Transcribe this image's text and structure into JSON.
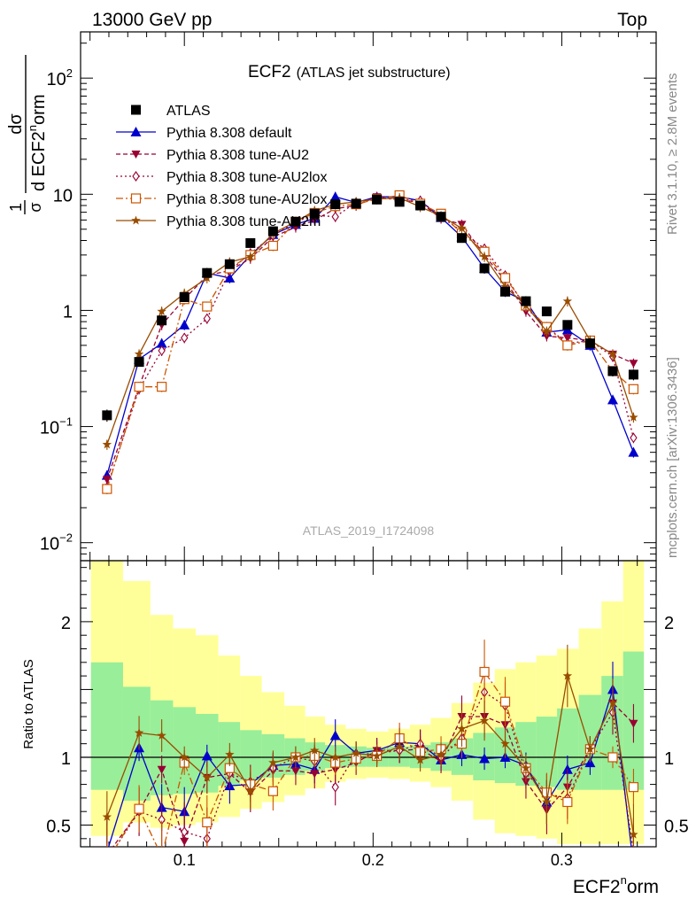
{
  "header": {
    "left": "13000 GeV pp",
    "right": "Top"
  },
  "title": {
    "main": "ECF2",
    "sub": "(ATLAS jet substructure)"
  },
  "ylabel_main": {
    "frac1_num": "1",
    "frac1_den": "σ",
    "frac2_num": "dσ",
    "frac2_den": "d ECF2",
    "sup": "n",
    "tail": "orm"
  },
  "ylabel_ratio": "Ratio to ATLAS",
  "xlabel": {
    "base": "ECF2",
    "sup": "n",
    "tail": "orm"
  },
  "side_text_top": "Rivet 3.1.10, ≥ 2.8M events",
  "side_text_bottom": "mcplots.cern.ch [arXiv:1306.3436]",
  "analysis_id": "ATLAS_2019_I1724098",
  "main_yticks": [
    {
      "value": 0.01,
      "base": "10",
      "exp": "−2"
    },
    {
      "value": 0.1,
      "base": "10",
      "exp": "−1"
    },
    {
      "value": 1,
      "base": "1",
      "exp": ""
    },
    {
      "value": 10,
      "base": "10",
      "exp": ""
    },
    {
      "value": 100,
      "base": "10",
      "exp": "2"
    }
  ],
  "ratio_yticks": [
    {
      "value": 0.5,
      "label": "0.5"
    },
    {
      "value": 1,
      "label": "1"
    },
    {
      "value": 2,
      "label": "2"
    }
  ],
  "xticks": [
    {
      "value": 0.1,
      "label": "0.1"
    },
    {
      "value": 0.2,
      "label": "0.2"
    },
    {
      "value": 0.3,
      "label": "0.3"
    }
  ],
  "chart_data": {
    "type": "scatter",
    "x": [
      0.059,
      0.076,
      0.088,
      0.1,
      0.112,
      0.124,
      0.135,
      0.147,
      0.159,
      0.169,
      0.18,
      0.191,
      0.202,
      0.214,
      0.225,
      0.236,
      0.247,
      0.259,
      0.27,
      0.281,
      0.292,
      0.303,
      0.315,
      0.327,
      0.338
    ],
    "xlim": [
      0.045,
      0.35
    ],
    "ylim_main": [
      0.007,
      250
    ],
    "ylim_ratio": [
      0.34,
      2.45
    ],
    "yscale_main": "log",
    "legend_position": "upper-left",
    "bands": {
      "green_inner": [
        [
          0.76,
          1.7
        ],
        [
          0.68,
          1.52
        ],
        [
          0.72,
          1.42
        ],
        [
          0.73,
          1.37
        ],
        [
          0.74,
          1.32
        ],
        [
          0.79,
          1.26
        ],
        [
          0.83,
          1.2
        ],
        [
          0.85,
          1.17
        ],
        [
          0.87,
          1.14
        ],
        [
          0.9,
          1.11
        ],
        [
          0.92,
          1.09
        ],
        [
          0.93,
          1.08
        ],
        [
          0.93,
          1.07
        ],
        [
          0.93,
          1.08
        ],
        [
          0.92,
          1.09
        ],
        [
          0.9,
          1.11
        ],
        [
          0.87,
          1.14
        ],
        [
          0.83,
          1.18
        ],
        [
          0.81,
          1.22
        ],
        [
          0.79,
          1.26
        ],
        [
          0.78,
          1.3
        ],
        [
          0.76,
          1.36
        ],
        [
          0.76,
          1.46
        ],
        [
          0.76,
          1.6
        ],
        [
          0.76,
          1.78
        ]
      ],
      "yellow_outer": [
        [
          0.42,
          2.45
        ],
        [
          0.52,
          2.3
        ],
        [
          0.48,
          2.05
        ],
        [
          0.5,
          1.95
        ],
        [
          0.52,
          1.9
        ],
        [
          0.56,
          1.75
        ],
        [
          0.62,
          1.6
        ],
        [
          0.67,
          1.48
        ],
        [
          0.72,
          1.38
        ],
        [
          0.77,
          1.3
        ],
        [
          0.82,
          1.24
        ],
        [
          0.84,
          1.21
        ],
        [
          0.85,
          1.19
        ],
        [
          0.84,
          1.21
        ],
        [
          0.82,
          1.24
        ],
        [
          0.78,
          1.29
        ],
        [
          0.68,
          1.4
        ],
        [
          0.54,
          1.55
        ],
        [
          0.44,
          1.65
        ],
        [
          0.42,
          1.7
        ],
        [
          0.4,
          1.75
        ],
        [
          0.36,
          1.8
        ],
        [
          0.36,
          1.95
        ],
        [
          0.36,
          2.15
        ],
        [
          0.36,
          2.45
        ]
      ]
    },
    "series": [
      {
        "name": "ATLAS",
        "color": "#000000",
        "marker": "square",
        "line": "none",
        "y": [
          0.125,
          0.36,
          0.82,
          1.3,
          2.1,
          2.5,
          3.8,
          4.8,
          5.8,
          6.8,
          8.2,
          8.3,
          9.0,
          8.6,
          8.0,
          6.4,
          4.2,
          2.3,
          1.45,
          1.2,
          0.98,
          0.75,
          0.52,
          0.3,
          0.28
        ],
        "ratio": [
          1,
          1,
          1,
          1,
          1,
          1,
          1,
          1,
          1,
          1,
          1,
          1,
          1,
          1,
          1,
          1,
          1,
          1,
          1,
          1,
          1,
          1,
          1,
          1,
          1
        ],
        "err": [
          0.015,
          0.03,
          0.06,
          0.1,
          0.15,
          0.18,
          0.25,
          0.3,
          0.35,
          0.4,
          0.45,
          0.45,
          0.45,
          0.45,
          0.45,
          0.38,
          0.28,
          0.16,
          0.11,
          0.09,
          0.08,
          0.06,
          0.05,
          0.03,
          0.03
        ]
      },
      {
        "name": "Pythia 8.308 default",
        "color": "#0000cc",
        "marker": "triangle-up",
        "line": "solid",
        "y": [
          0.038,
          0.38,
          0.52,
          0.75,
          2.1,
          1.9,
          3.0,
          4.5,
          5.5,
          6.2,
          9.5,
          8.5,
          9.5,
          9.5,
          8.8,
          6.3,
          4.3,
          2.3,
          1.45,
          1.2,
          0.65,
          0.68,
          0.5,
          0.17,
          0.06
        ],
        "ratio": [
          0.3,
          1.07,
          0.63,
          0.6,
          1.01,
          0.79,
          0.8,
          0.94,
          0.95,
          0.91,
          1.16,
          1.03,
          1.05,
          1.11,
          1.1,
          0.98,
          1.02,
          0.99,
          1.0,
          0.94,
          0.67,
          0.91,
          0.96,
          1.5,
          0.2
        ]
      },
      {
        "name": "Pythia 8.308 tune-AU2",
        "color": "#990033",
        "marker": "triangle-down",
        "line": "dashed",
        "y": [
          0.035,
          0.22,
          0.75,
          1.25,
          2.0,
          2.2,
          2.8,
          4.3,
          5.2,
          6.0,
          7.5,
          8.0,
          9.5,
          9.0,
          8.5,
          6.2,
          5.5,
          3.0,
          1.8,
          0.98,
          0.6,
          0.58,
          0.55,
          0.42,
          0.35
        ],
        "ratio": [
          0.28,
          0.6,
          0.91,
          0.38,
          0.85,
          0.88,
          0.74,
          0.9,
          0.9,
          0.88,
          0.91,
          0.96,
          1.05,
          1.05,
          1.06,
          0.97,
          1.3,
          1.3,
          1.24,
          0.82,
          0.61,
          0.78,
          1.06,
          1.4,
          1.25
        ]
      },
      {
        "name": "Pythia 8.308 tune-AU2lox",
        "color": "#990033",
        "marker": "diamond-open",
        "line": "dotted",
        "y": [
          0.03,
          0.21,
          0.45,
          0.58,
          0.85,
          2.2,
          3.1,
          4.4,
          5.8,
          6.6,
          6.4,
          8.5,
          9.3,
          9.0,
          8.8,
          6.4,
          4.8,
          3.4,
          2.0,
          1.05,
          0.72,
          0.52,
          0.55,
          0.4,
          0.08
        ],
        "ratio": [
          0.24,
          0.6,
          0.54,
          0.45,
          0.4,
          0.88,
          0.82,
          0.92,
          1.0,
          0.97,
          0.78,
          1.02,
          1.03,
          1.05,
          1.1,
          1.0,
          1.14,
          1.48,
          1.38,
          0.88,
          0.73,
          0.7,
          1.06,
          1.33,
          0.3
        ]
      },
      {
        "name": "Pythia 8.308 tune-AU2lox",
        "color": "#cc5500",
        "marker": "square-open",
        "line": "dashdot",
        "y": [
          0.029,
          0.22,
          0.22,
          1.25,
          1.08,
          2.3,
          3.0,
          3.6,
          5.8,
          6.9,
          7.9,
          8.2,
          9.1,
          9.8,
          8.3,
          6.8,
          4.6,
          3.2,
          1.9,
          1.1,
          0.72,
          0.5,
          0.55,
          0.3,
          0.21
        ],
        "ratio": [
          0.23,
          0.62,
          0.27,
          0.96,
          0.52,
          0.92,
          0.8,
          0.75,
          1.0,
          1.01,
          0.96,
          0.99,
          1.01,
          1.14,
          1.04,
          1.06,
          1.1,
          1.63,
          1.41,
          0.92,
          0.74,
          0.67,
          1.06,
          1.0,
          0.78
        ]
      },
      {
        "name": "Pythia 8.308 tune-AU2m",
        "color": "#994c00",
        "marker": "star",
        "line": "solid",
        "y": [
          0.07,
          0.42,
          0.98,
          1.4,
          1.9,
          2.6,
          2.9,
          4.6,
          5.8,
          7.2,
          8.2,
          8.6,
          9.1,
          9.3,
          7.8,
          6.5,
          5.1,
          2.9,
          1.6,
          1.1,
          0.66,
          1.2,
          0.55,
          0.42,
          0.12
        ],
        "ratio": [
          0.56,
          1.18,
          1.16,
          1.0,
          0.85,
          1.02,
          0.75,
          0.96,
          1.0,
          1.05,
          1.0,
          1.03,
          1.01,
          1.08,
          0.98,
          1.02,
          1.21,
          1.27,
          1.1,
          0.92,
          0.67,
          1.6,
          1.06,
          1.4,
          0.43
        ]
      }
    ]
  }
}
